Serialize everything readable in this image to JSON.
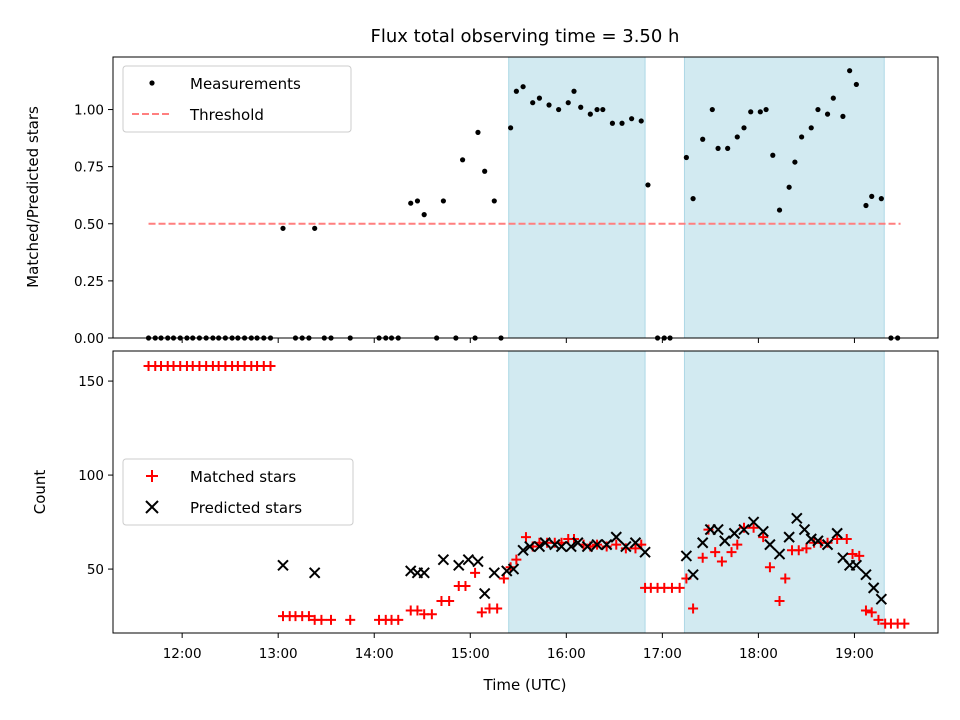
{
  "chart_data": [
    {
      "type": "scatter",
      "title": "Flux total observing time = 3.50 h",
      "xlabel": "",
      "ylabel": "Matched/Predicted stars",
      "xlim": [
        11.28,
        19.87
      ],
      "ylim": [
        0.0,
        1.23
      ],
      "yticks": [
        0.0,
        0.25,
        0.5,
        0.75,
        1.0
      ],
      "ytick_labels": [
        "0.00",
        "0.25",
        "0.50",
        "0.75",
        "1.00"
      ],
      "shaded_intervals": [
        [
          15.4,
          16.82
        ],
        [
          17.23,
          19.31
        ]
      ],
      "shade_color": "#add8e6",
      "legend_position": "upper left",
      "series": [
        {
          "name": "Measurements",
          "marker": "dot",
          "color": "#000000",
          "points": [
            [
              11.65,
              0.0
            ],
            [
              11.72,
              0.0
            ],
            [
              11.78,
              0.0
            ],
            [
              11.85,
              0.0
            ],
            [
              11.91,
              0.0
            ],
            [
              11.98,
              0.0
            ],
            [
              12.05,
              0.0
            ],
            [
              12.11,
              0.0
            ],
            [
              12.18,
              0.0
            ],
            [
              12.25,
              0.0
            ],
            [
              12.32,
              0.0
            ],
            [
              12.38,
              0.0
            ],
            [
              12.45,
              0.0
            ],
            [
              12.52,
              0.0
            ],
            [
              12.58,
              0.0
            ],
            [
              12.65,
              0.0
            ],
            [
              12.72,
              0.0
            ],
            [
              12.78,
              0.0
            ],
            [
              12.85,
              0.0
            ],
            [
              12.92,
              0.0
            ],
            [
              13.05,
              0.48
            ],
            [
              13.18,
              0.0
            ],
            [
              13.25,
              0.0
            ],
            [
              13.32,
              0.0
            ],
            [
              13.38,
              0.48
            ],
            [
              13.48,
              0.0
            ],
            [
              13.55,
              0.0
            ],
            [
              13.75,
              0.0
            ],
            [
              14.05,
              0.0
            ],
            [
              14.12,
              0.0
            ],
            [
              14.18,
              0.0
            ],
            [
              14.25,
              0.0
            ],
            [
              14.38,
              0.59
            ],
            [
              14.45,
              0.6
            ],
            [
              14.52,
              0.54
            ],
            [
              14.65,
              0.0
            ],
            [
              14.72,
              0.6
            ],
            [
              14.85,
              0.0
            ],
            [
              14.92,
              0.78
            ],
            [
              15.05,
              0.0
            ],
            [
              15.08,
              0.9
            ],
            [
              15.15,
              0.73
            ],
            [
              15.25,
              0.6
            ],
            [
              15.32,
              0.0
            ],
            [
              15.42,
              0.92
            ],
            [
              15.48,
              1.08
            ],
            [
              15.55,
              1.1
            ],
            [
              15.65,
              1.03
            ],
            [
              15.72,
              1.05
            ],
            [
              15.82,
              1.02
            ],
            [
              15.92,
              1.0
            ],
            [
              16.02,
              1.03
            ],
            [
              16.08,
              1.08
            ],
            [
              16.15,
              1.01
            ],
            [
              16.25,
              0.98
            ],
            [
              16.32,
              1.0
            ],
            [
              16.38,
              1.0
            ],
            [
              16.48,
              0.94
            ],
            [
              16.58,
              0.94
            ],
            [
              16.68,
              0.96
            ],
            [
              16.78,
              0.95
            ],
            [
              16.85,
              0.67
            ],
            [
              16.95,
              0.0
            ],
            [
              17.02,
              0.0
            ],
            [
              17.08,
              0.0
            ],
            [
              17.25,
              0.79
            ],
            [
              17.32,
              0.61
            ],
            [
              17.42,
              0.87
            ],
            [
              17.52,
              1.0
            ],
            [
              17.58,
              0.83
            ],
            [
              17.68,
              0.83
            ],
            [
              17.78,
              0.88
            ],
            [
              17.85,
              0.92
            ],
            [
              17.92,
              0.99
            ],
            [
              18.02,
              0.99
            ],
            [
              18.08,
              1.0
            ],
            [
              18.15,
              0.8
            ],
            [
              18.22,
              0.56
            ],
            [
              18.32,
              0.66
            ],
            [
              18.38,
              0.77
            ],
            [
              18.45,
              0.88
            ],
            [
              18.55,
              0.92
            ],
            [
              18.62,
              1.0
            ],
            [
              18.72,
              0.98
            ],
            [
              18.78,
              1.05
            ],
            [
              18.88,
              0.97
            ],
            [
              18.95,
              1.17
            ],
            [
              19.02,
              1.11
            ],
            [
              19.12,
              0.58
            ],
            [
              19.18,
              0.62
            ],
            [
              19.28,
              0.61
            ],
            [
              19.38,
              0.0
            ],
            [
              19.45,
              0.0
            ]
          ]
        },
        {
          "name": "Threshold",
          "marker": "dashed-line",
          "color": "#ff7f7f",
          "points": [
            [
              11.65,
              0.5
            ],
            [
              19.48,
              0.5
            ]
          ]
        }
      ]
    },
    {
      "type": "scatter",
      "title": "",
      "xlabel": "Time (UTC)",
      "ylabel": "Count",
      "xlim": [
        11.28,
        19.87
      ],
      "ylim": [
        16,
        166
      ],
      "yticks": [
        50,
        100,
        150
      ],
      "ytick_labels": [
        "50",
        "100",
        "150"
      ],
      "xticks": [
        12,
        13,
        14,
        15,
        16,
        17,
        18,
        19
      ],
      "xtick_labels": [
        "12:00",
        "13:00",
        "14:00",
        "15:00",
        "16:00",
        "17:00",
        "18:00",
        "19:00"
      ],
      "shaded_intervals": [
        [
          15.4,
          16.82
        ],
        [
          17.23,
          19.31
        ]
      ],
      "shade_color": "#add8e6",
      "legend_position": "center left",
      "series": [
        {
          "name": "Matched stars",
          "marker": "plus",
          "color": "#ff0000",
          "points": [
            [
              11.65,
              158
            ],
            [
              11.72,
              158
            ],
            [
              11.78,
              158
            ],
            [
              11.85,
              158
            ],
            [
              11.91,
              158
            ],
            [
              11.98,
              158
            ],
            [
              12.05,
              158
            ],
            [
              12.11,
              158
            ],
            [
              12.18,
              158
            ],
            [
              12.25,
              158
            ],
            [
              12.32,
              158
            ],
            [
              12.38,
              158
            ],
            [
              12.45,
              158
            ],
            [
              12.52,
              158
            ],
            [
              12.58,
              158
            ],
            [
              12.65,
              158
            ],
            [
              12.72,
              158
            ],
            [
              12.78,
              158
            ],
            [
              12.85,
              158
            ],
            [
              12.92,
              158
            ],
            [
              13.05,
              25
            ],
            [
              13.12,
              25
            ],
            [
              13.18,
              25
            ],
            [
              13.25,
              25
            ],
            [
              13.32,
              25
            ],
            [
              13.38,
              23
            ],
            [
              13.45,
              23
            ],
            [
              13.55,
              23
            ],
            [
              13.75,
              23
            ],
            [
              14.05,
              23
            ],
            [
              14.12,
              23
            ],
            [
              14.18,
              23
            ],
            [
              14.25,
              23
            ],
            [
              14.38,
              28
            ],
            [
              14.45,
              28
            ],
            [
              14.52,
              26
            ],
            [
              14.6,
              26
            ],
            [
              14.7,
              33
            ],
            [
              14.78,
              33
            ],
            [
              14.88,
              41
            ],
            [
              14.95,
              41
            ],
            [
              15.05,
              48
            ],
            [
              15.12,
              27
            ],
            [
              15.2,
              29
            ],
            [
              15.28,
              29
            ],
            [
              15.35,
              45
            ],
            [
              15.42,
              51
            ],
            [
              15.48,
              55
            ],
            [
              15.58,
              67
            ],
            [
              15.65,
              62
            ],
            [
              15.72,
              64
            ],
            [
              15.8,
              64
            ],
            [
              15.88,
              64
            ],
            [
              15.95,
              64
            ],
            [
              16.02,
              66
            ],
            [
              16.08,
              66
            ],
            [
              16.18,
              63
            ],
            [
              16.25,
              62
            ],
            [
              16.32,
              63
            ],
            [
              16.42,
              62
            ],
            [
              16.52,
              63
            ],
            [
              16.62,
              61
            ],
            [
              16.72,
              61
            ],
            [
              16.78,
              63
            ],
            [
              16.82,
              40
            ],
            [
              16.88,
              40
            ],
            [
              16.95,
              40
            ],
            [
              17.02,
              40
            ],
            [
              17.1,
              40
            ],
            [
              17.18,
              40
            ],
            [
              17.25,
              45
            ],
            [
              17.32,
              29
            ],
            [
              17.42,
              56
            ],
            [
              17.48,
              71
            ],
            [
              17.55,
              59
            ],
            [
              17.62,
              54
            ],
            [
              17.72,
              59
            ],
            [
              17.78,
              63
            ],
            [
              17.85,
              72
            ],
            [
              17.95,
              72
            ],
            [
              18.05,
              67
            ],
            [
              18.12,
              51
            ],
            [
              18.22,
              33
            ],
            [
              18.28,
              45
            ],
            [
              18.35,
              60
            ],
            [
              18.42,
              60
            ],
            [
              18.5,
              61
            ],
            [
              18.58,
              64
            ],
            [
              18.65,
              64
            ],
            [
              18.72,
              64
            ],
            [
              18.82,
              66
            ],
            [
              18.92,
              66
            ],
            [
              18.98,
              58
            ],
            [
              19.05,
              57
            ],
            [
              19.12,
              28
            ],
            [
              19.18,
              27
            ],
            [
              19.25,
              23
            ],
            [
              19.32,
              21
            ],
            [
              19.38,
              21
            ],
            [
              19.45,
              21
            ],
            [
              19.52,
              21
            ]
          ]
        },
        {
          "name": "Predicted stars",
          "marker": "x",
          "color": "#000000",
          "points": [
            [
              13.05,
              52
            ],
            [
              13.38,
              48
            ],
            [
              14.38,
              49
            ],
            [
              14.45,
              48
            ],
            [
              14.52,
              48
            ],
            [
              14.72,
              55
            ],
            [
              14.88,
              52
            ],
            [
              14.98,
              55
            ],
            [
              15.08,
              54
            ],
            [
              15.15,
              37
            ],
            [
              15.25,
              48
            ],
            [
              15.38,
              49
            ],
            [
              15.45,
              50
            ],
            [
              15.55,
              60
            ],
            [
              15.62,
              62
            ],
            [
              15.72,
              62
            ],
            [
              15.78,
              64
            ],
            [
              15.88,
              63
            ],
            [
              15.95,
              62
            ],
            [
              16.05,
              62
            ],
            [
              16.12,
              64
            ],
            [
              16.22,
              62
            ],
            [
              16.32,
              63
            ],
            [
              16.42,
              63
            ],
            [
              16.52,
              67
            ],
            [
              16.62,
              62
            ],
            [
              16.72,
              64
            ],
            [
              16.82,
              59
            ],
            [
              17.25,
              57
            ],
            [
              17.32,
              47
            ],
            [
              17.42,
              64
            ],
            [
              17.5,
              71
            ],
            [
              17.58,
              71
            ],
            [
              17.65,
              65
            ],
            [
              17.75,
              69
            ],
            [
              17.85,
              71
            ],
            [
              17.95,
              75
            ],
            [
              18.05,
              70
            ],
            [
              18.12,
              63
            ],
            [
              18.22,
              58
            ],
            [
              18.32,
              67
            ],
            [
              18.4,
              77
            ],
            [
              18.48,
              71
            ],
            [
              18.55,
              66
            ],
            [
              18.62,
              65
            ],
            [
              18.72,
              63
            ],
            [
              18.82,
              69
            ],
            [
              18.88,
              56
            ],
            [
              18.95,
              52
            ],
            [
              19.02,
              52
            ],
            [
              19.12,
              47
            ],
            [
              19.2,
              40
            ],
            [
              19.28,
              34
            ]
          ]
        }
      ]
    }
  ]
}
